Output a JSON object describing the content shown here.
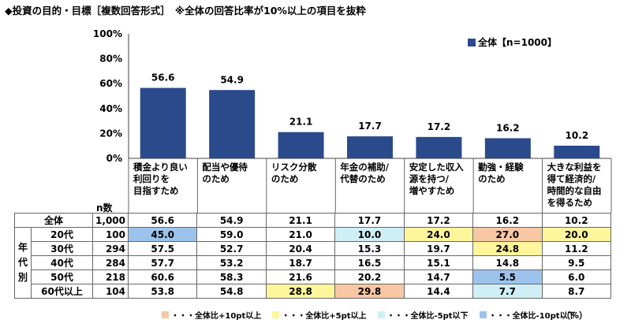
{
  "title": "◆投資の目的・目標［複数回答形式］　※全体の回答比率が10%以上の項目を抜粋",
  "legend": {
    "label": "全体【n=1000】",
    "color": "#2a4a8c"
  },
  "n_label": "n数",
  "vertical_group_label": "年代別",
  "chart_data": {
    "type": "bar",
    "ylim": [
      0,
      100
    ],
    "yticks": [
      "0%",
      "20%",
      "40%",
      "60%",
      "80%",
      "100%"
    ],
    "categories": [
      "積金より良い\n利回りを\n目指すため",
      "配当や優待\nのため",
      "リスク分散\nのため",
      "年金の補助/\n代替のため",
      "安定した収入\n源を持つ/\n増やすため",
      "勤強・経験\nのため",
      "大きな利益を\n得て経済的/\n時間的な自由\nを得るため"
    ],
    "series": [
      {
        "name": "全体【n=1000】",
        "values": [
          56.6,
          54.9,
          21.1,
          17.7,
          17.2,
          16.2,
          10.2
        ]
      }
    ]
  },
  "table": {
    "rows": [
      {
        "label": "全体",
        "n": "1,000",
        "values": [
          "56.6",
          "54.9",
          "21.1",
          "17.7",
          "17.2",
          "16.2",
          "10.2"
        ],
        "hl": [
          "",
          "",
          "",
          "",
          "",
          "",
          ""
        ]
      },
      {
        "label": "20代",
        "n": "100",
        "values": [
          "45.0",
          "59.0",
          "21.0",
          "10.0",
          "24.0",
          "27.0",
          "20.0"
        ],
        "hl": [
          "blue",
          "",
          "",
          "cyan",
          "yellow",
          "orange",
          "yellow"
        ]
      },
      {
        "label": "30代",
        "n": "294",
        "values": [
          "57.5",
          "52.7",
          "20.4",
          "15.3",
          "19.7",
          "24.8",
          "11.2"
        ],
        "hl": [
          "",
          "",
          "",
          "",
          "",
          "yellow",
          ""
        ]
      },
      {
        "label": "40代",
        "n": "284",
        "values": [
          "57.7",
          "53.2",
          "18.7",
          "16.5",
          "15.1",
          "14.8",
          "9.5"
        ],
        "hl": [
          "",
          "",
          "",
          "",
          "",
          "",
          ""
        ]
      },
      {
        "label": "50代",
        "n": "218",
        "values": [
          "60.6",
          "58.3",
          "21.6",
          "20.2",
          "14.7",
          "5.5",
          "6.0"
        ],
        "hl": [
          "",
          "",
          "",
          "",
          "",
          "blue",
          ""
        ]
      },
      {
        "label": "60代以上",
        "n": "104",
        "values": [
          "53.8",
          "54.8",
          "28.8",
          "29.8",
          "14.4",
          "7.7",
          "8.7"
        ],
        "hl": [
          "",
          "",
          "yellow",
          "orange",
          "",
          "cyan",
          ""
        ]
      }
    ]
  },
  "bottom_legend": [
    {
      "label": "・・・全体比+10pt以上",
      "color": "#f8c7a4"
    },
    {
      "label": "・・・全体比+5pt以上",
      "color": "#fff69c"
    },
    {
      "label": "・・・全体比-5pt以下",
      "color": "#cfeff6"
    },
    {
      "label": "・・・全体比-10pt以下",
      "color": "#9cc3eb"
    }
  ],
  "unit": "（%）"
}
